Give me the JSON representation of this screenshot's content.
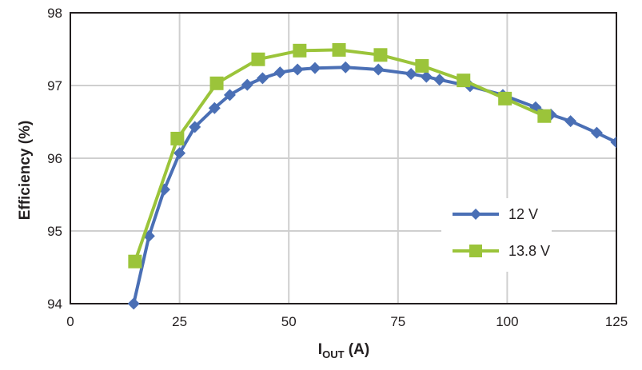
{
  "chart_data": {
    "type": "line",
    "xlabel_main": "I",
    "xlabel_sub": "OUT",
    "xlabel_unit": " (A)",
    "ylabel": "Efficiency (%)",
    "xlim": [
      0,
      125
    ],
    "ylim": [
      94,
      98
    ],
    "xticks": [
      "0",
      "25",
      "50",
      "75",
      "100",
      "125"
    ],
    "yticks": [
      "94",
      "95",
      "96",
      "97",
      "98"
    ],
    "grid": true,
    "legend_position": "right",
    "series": [
      {
        "name": "12 V",
        "color": "#4a6fb5",
        "marker": "diamond",
        "x": [
          14.5,
          18,
          21.5,
          25,
          28.5,
          33,
          36.5,
          40.5,
          44,
          48,
          52,
          56,
          63,
          70.5,
          78,
          81.5,
          84.5,
          91.5,
          99,
          106.5,
          110,
          114.5,
          120.5,
          125
        ],
        "y": [
          94.0,
          94.93,
          95.57,
          96.07,
          96.43,
          96.69,
          96.87,
          97.01,
          97.1,
          97.18,
          97.22,
          97.24,
          97.25,
          97.22,
          97.16,
          97.12,
          97.08,
          96.99,
          96.87,
          96.7,
          96.6,
          96.51,
          96.35,
          96.22
        ]
      },
      {
        "name": "13.8 V",
        "color": "#9bc43a",
        "marker": "square",
        "x": [
          14.8,
          24.5,
          33.5,
          43,
          52.5,
          61.5,
          71,
          80.5,
          90,
          99.5,
          108.5
        ],
        "y": [
          94.58,
          96.27,
          97.03,
          97.36,
          97.48,
          97.49,
          97.42,
          97.27,
          97.07,
          96.82,
          96.58
        ]
      }
    ]
  }
}
